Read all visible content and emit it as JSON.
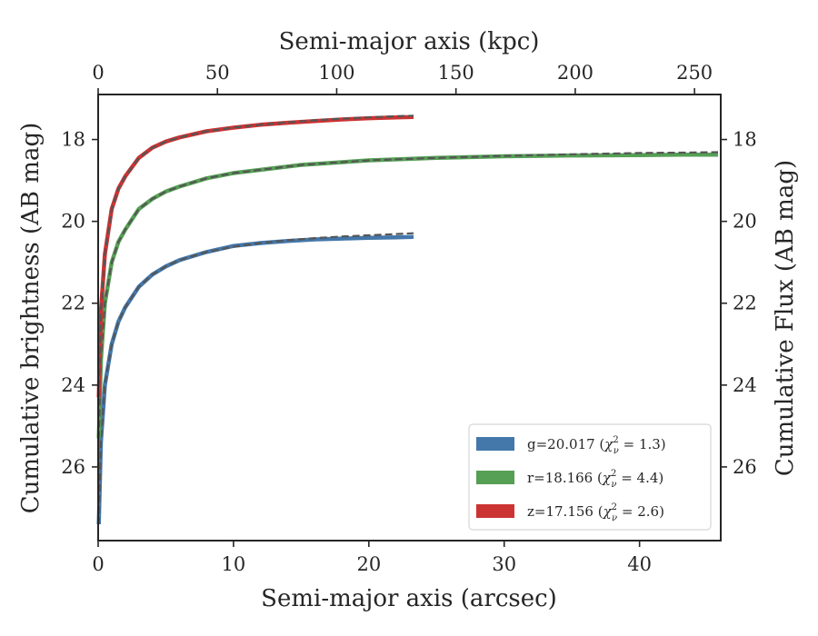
{
  "chart_data": {
    "type": "line",
    "xlabel": "Semi-major axis (arcsec)",
    "top_xlabel": "Semi-major axis (kpc)",
    "ylabel": "Cumulative brightness (AB mag)",
    "right_ylabel": "Cumulative Flux (AB mag)",
    "xlim": [
      0,
      46
    ],
    "top_xlim": [
      0,
      261
    ],
    "ylim": [
      27.8,
      16.9
    ],
    "y_inverted": true,
    "x_ticks": [
      "0",
      "10",
      "20",
      "30",
      "40"
    ],
    "top_x_ticks": [
      "0",
      "50",
      "100",
      "150",
      "200",
      "250"
    ],
    "y_ticks": [
      "18",
      "20",
      "22",
      "24",
      "26"
    ],
    "right_y_ticks": [
      "18",
      "20",
      "22",
      "24",
      "26"
    ],
    "grid": false,
    "legend_position": "lower-right",
    "series": [
      {
        "name": "g=20.017 (χ²ν = 1.3)",
        "legend_main": "g=20.017 (",
        "legend_chi": "χ",
        "legend_sup": "2",
        "legend_sub": "ν",
        "legend_tail": " = 1.3)",
        "color": "#4477aa",
        "x": [
          0.05,
          0.2,
          0.5,
          1,
          1.5,
          2,
          3,
          4,
          5,
          6,
          8,
          10,
          12,
          14,
          16,
          18,
          20,
          22,
          23.3
        ],
        "values": [
          27.4,
          25.4,
          24.0,
          23.0,
          22.45,
          22.1,
          21.6,
          21.3,
          21.1,
          20.95,
          20.75,
          20.6,
          20.53,
          20.48,
          20.44,
          20.42,
          20.4,
          20.39,
          20.38
        ],
        "model_x": [
          0.05,
          0.2,
          0.5,
          1,
          1.5,
          2,
          3,
          4,
          5,
          6,
          8,
          10,
          12,
          14,
          16,
          18,
          20,
          22,
          23.3
        ],
        "model_values": [
          27.4,
          25.4,
          24.0,
          23.0,
          22.45,
          22.1,
          21.6,
          21.3,
          21.1,
          20.95,
          20.75,
          20.62,
          20.53,
          20.46,
          20.41,
          20.37,
          20.34,
          20.31,
          20.29
        ]
      },
      {
        "name": "r=18.166 (χ²ν = 4.4)",
        "legend_main": "r=18.166 (",
        "legend_chi": "χ",
        "legend_sup": "2",
        "legend_sub": "ν",
        "legend_tail": " = 4.4)",
        "color": "#55a055",
        "x": [
          0.05,
          0.2,
          0.5,
          1,
          1.5,
          2,
          3,
          4,
          5,
          6,
          8,
          10,
          15,
          20,
          25,
          30,
          35,
          40,
          43,
          45.8
        ],
        "values": [
          25.3,
          23.4,
          22.0,
          21.0,
          20.5,
          20.2,
          19.7,
          19.45,
          19.27,
          19.15,
          18.95,
          18.82,
          18.62,
          18.51,
          18.45,
          18.41,
          18.39,
          18.38,
          18.37,
          18.37
        ],
        "model_x": [
          0.05,
          0.2,
          0.5,
          1,
          1.5,
          2,
          3,
          4,
          5,
          6,
          8,
          10,
          15,
          20,
          25,
          30,
          35,
          40,
          43,
          45.8
        ],
        "model_values": [
          25.3,
          23.4,
          22.0,
          21.0,
          20.5,
          20.2,
          19.7,
          19.45,
          19.27,
          19.15,
          18.95,
          18.82,
          18.62,
          18.51,
          18.45,
          18.4,
          18.36,
          18.33,
          18.32,
          18.31
        ]
      },
      {
        "name": "z=17.156 (χ²ν = 2.6)",
        "legend_main": "z=17.156 (",
        "legend_chi": "χ",
        "legend_sup": "2",
        "legend_sub": "ν",
        "legend_tail": " = 2.6)",
        "color": "#cc3333",
        "x": [
          0.05,
          0.2,
          0.5,
          1,
          1.5,
          2,
          3,
          4,
          5,
          6,
          8,
          10,
          12,
          14,
          16,
          18,
          20,
          22,
          23.3
        ],
        "values": [
          24.3,
          22.2,
          20.8,
          19.7,
          19.2,
          18.9,
          18.45,
          18.2,
          18.05,
          17.95,
          17.8,
          17.71,
          17.64,
          17.59,
          17.55,
          17.51,
          17.48,
          17.46,
          17.45
        ],
        "model_x": [
          0.05,
          0.2,
          0.5,
          1,
          1.5,
          2,
          3,
          4,
          5,
          6,
          8,
          10,
          12,
          14,
          16,
          18,
          20,
          22,
          23.3
        ],
        "model_values": [
          24.3,
          22.2,
          20.8,
          19.7,
          19.2,
          18.9,
          18.45,
          18.2,
          18.05,
          17.95,
          17.8,
          17.71,
          17.64,
          17.58,
          17.53,
          17.49,
          17.46,
          17.43,
          17.42
        ]
      }
    ],
    "model_line_color": "#555555"
  }
}
